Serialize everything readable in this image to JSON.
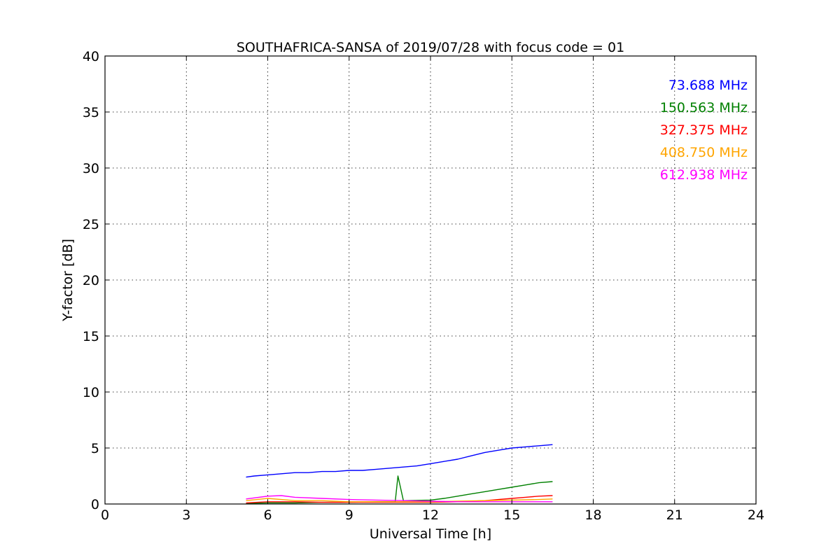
{
  "chart_data": {
    "type": "line",
    "title": "SOUTHAFRICA-SANSA of 2019/07/28 with focus code = 01",
    "xlabel": "Universal Time [h]",
    "ylabel": "Y-factor [dB]",
    "xlim": [
      0,
      24
    ],
    "ylim": [
      0,
      40
    ],
    "xticks": [
      0,
      3,
      6,
      9,
      12,
      15,
      18,
      21,
      24
    ],
    "yticks": [
      0,
      5,
      10,
      15,
      20,
      25,
      30,
      35,
      40
    ],
    "grid": true,
    "legend_position": "top-right",
    "series": [
      {
        "name": "73.688 MHz",
        "color": "#0000ff",
        "x": [
          5.2,
          5.5,
          6.0,
          6.5,
          7.0,
          7.5,
          8.0,
          8.5,
          9.0,
          9.5,
          10.0,
          10.5,
          11.0,
          11.5,
          12.0,
          12.5,
          13.0,
          13.5,
          14.0,
          14.5,
          15.0,
          15.5,
          16.0,
          16.5
        ],
        "y": [
          2.4,
          2.5,
          2.6,
          2.7,
          2.8,
          2.8,
          2.9,
          2.9,
          3.0,
          3.0,
          3.1,
          3.2,
          3.3,
          3.4,
          3.6,
          3.8,
          4.0,
          4.3,
          4.6,
          4.8,
          5.0,
          5.1,
          5.2,
          5.3
        ]
      },
      {
        "name": "150.563 MHz",
        "color": "#008000",
        "x": [
          5.2,
          6.0,
          7.0,
          8.0,
          9.0,
          10.0,
          10.7,
          10.8,
          11.0,
          12.0,
          12.5,
          13.0,
          13.5,
          14.0,
          14.5,
          15.0,
          15.5,
          16.0,
          16.5
        ],
        "y": [
          0.05,
          0.1,
          0.1,
          0.15,
          0.15,
          0.2,
          0.2,
          2.5,
          0.3,
          0.35,
          0.5,
          0.7,
          0.9,
          1.1,
          1.3,
          1.5,
          1.7,
          1.9,
          2.0
        ]
      },
      {
        "name": "327.375 MHz",
        "color": "#ff0000",
        "x": [
          5.2,
          6.0,
          7.0,
          8.0,
          9.0,
          10.0,
          11.0,
          12.0,
          13.0,
          14.0,
          14.5,
          15.0,
          15.5,
          16.0,
          16.5
        ],
        "y": [
          0.1,
          0.2,
          0.2,
          0.15,
          0.15,
          0.15,
          0.15,
          0.15,
          0.2,
          0.3,
          0.4,
          0.5,
          0.6,
          0.7,
          0.75
        ]
      },
      {
        "name": "408.750 MHz",
        "color": "#ffa500",
        "x": [
          5.2,
          6.0,
          7.0,
          8.0,
          9.0,
          10.0,
          11.0,
          12.0,
          13.0,
          14.0,
          15.0,
          16.0,
          16.5
        ],
        "y": [
          0.3,
          0.5,
          0.3,
          0.3,
          0.2,
          0.2,
          0.2,
          0.2,
          0.25,
          0.3,
          0.35,
          0.4,
          0.45
        ]
      },
      {
        "name": "612.938 MHz",
        "color": "#ff00ff",
        "x": [
          5.2,
          6.0,
          6.5,
          7.0,
          8.0,
          9.0,
          10.0,
          11.0,
          12.0,
          13.0,
          14.0,
          15.0,
          16.0,
          16.5
        ],
        "y": [
          0.45,
          0.7,
          0.75,
          0.6,
          0.5,
          0.4,
          0.35,
          0.3,
          0.25,
          0.2,
          0.2,
          0.2,
          0.2,
          0.2
        ]
      }
    ]
  }
}
